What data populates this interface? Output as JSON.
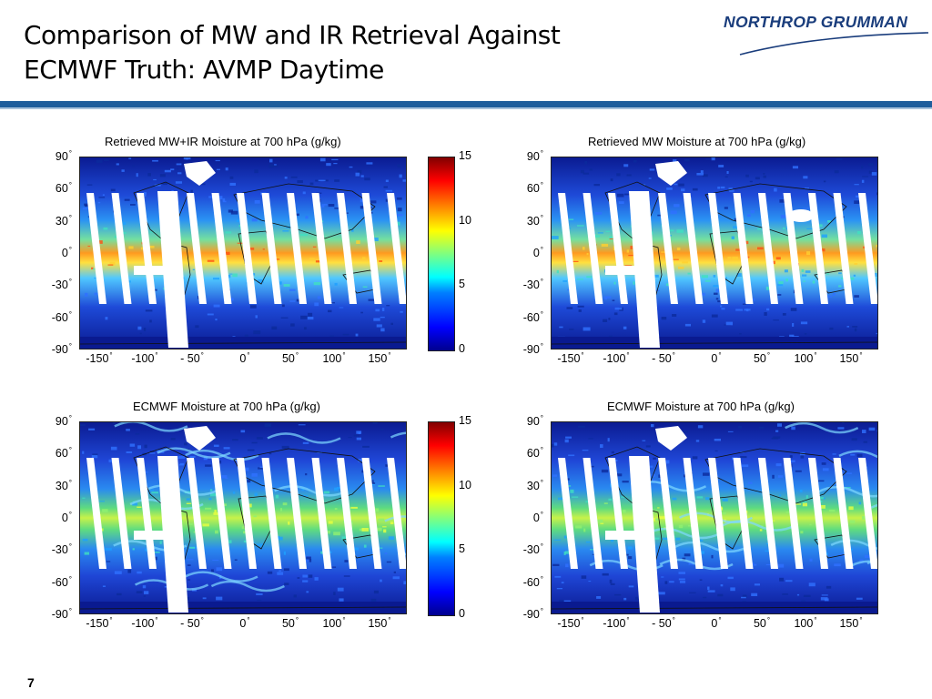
{
  "slide": {
    "title_line1": "Comparison of MW and IR Retrieval Against",
    "title_line2": "ECMWF Truth: AVMP Daytime",
    "logo_text": "NORTHROP GRUMMAN",
    "page_number": "7"
  },
  "axes": {
    "y_ticks": [
      "90",
      "60",
      "30",
      "0",
      "-30",
      "-60",
      "-90"
    ],
    "x_ticks": [
      "-150",
      "-100",
      "- 50",
      "0",
      "50",
      "100",
      "150"
    ],
    "degree_symbol": "°"
  },
  "colorbar": {
    "ticks": [
      "15",
      "10",
      "5",
      "0"
    ],
    "range": [
      0,
      15
    ],
    "colormap": "jet"
  },
  "panels": [
    {
      "title": "Retrieved MW+IR Moisture at 700 hPa (g/kg)",
      "type": "retrieved_mwir"
    },
    {
      "title": "Retrieved MW Moisture at 700 hPa (g/kg)",
      "type": "retrieved_mw"
    },
    {
      "title": "ECMWF Moisture at 700 hPa (g/kg)",
      "type": "ecmwf"
    },
    {
      "title": "ECMWF Moisture at 700 hPa (g/kg)",
      "type": "ecmwf"
    }
  ],
  "colors": {
    "header_rule": "#1f5e9c",
    "logo": "#1a3d7c"
  }
}
